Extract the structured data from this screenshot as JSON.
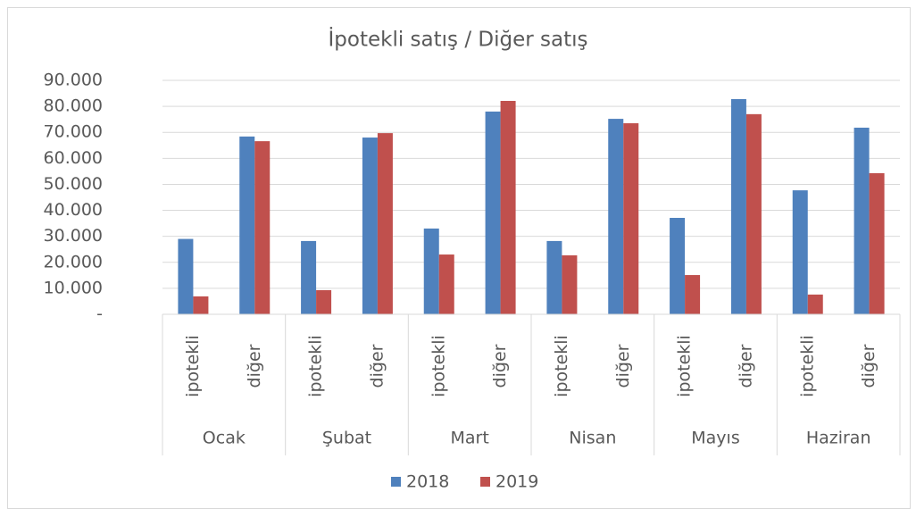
{
  "chart_data": {
    "type": "bar",
    "title": "İpotekli satış / Diğer satış",
    "categories": [
      "ipotekli",
      "diğer",
      "ipotekli",
      "diğer",
      "ipotekli",
      "diğer",
      "ipotekli",
      "diğer",
      "ipotekli",
      "diğer",
      "ipotekli",
      "diğer"
    ],
    "groups": [
      "Ocak",
      "Şubat",
      "Mart",
      "Nisan",
      "Mayıs",
      "Haziran"
    ],
    "series": [
      {
        "name": "2018",
        "color": "#4f81bd",
        "values": [
          29000,
          68400,
          28200,
          68000,
          33000,
          78000,
          28200,
          75200,
          37100,
          82800,
          47700,
          71800
        ]
      },
      {
        "name": "2019",
        "color": "#c0504d",
        "values": [
          6900,
          66600,
          9300,
          69700,
          23000,
          82100,
          22700,
          73500,
          15100,
          77000,
          7600,
          54300
        ]
      }
    ],
    "ylim": [
      0,
      90000
    ],
    "yticks": [
      {
        "value": 0,
        "label": "-"
      },
      {
        "value": 10000,
        "label": "10.000"
      },
      {
        "value": 20000,
        "label": "20.000"
      },
      {
        "value": 30000,
        "label": "30.000"
      },
      {
        "value": 40000,
        "label": "40.000"
      },
      {
        "value": 50000,
        "label": "50.000"
      },
      {
        "value": 60000,
        "label": "60.000"
      },
      {
        "value": 70000,
        "label": "70.000"
      },
      {
        "value": 80000,
        "label": "80.000"
      },
      {
        "value": 90000,
        "label": "90.000"
      }
    ],
    "grid": true,
    "legend": "bottom"
  }
}
